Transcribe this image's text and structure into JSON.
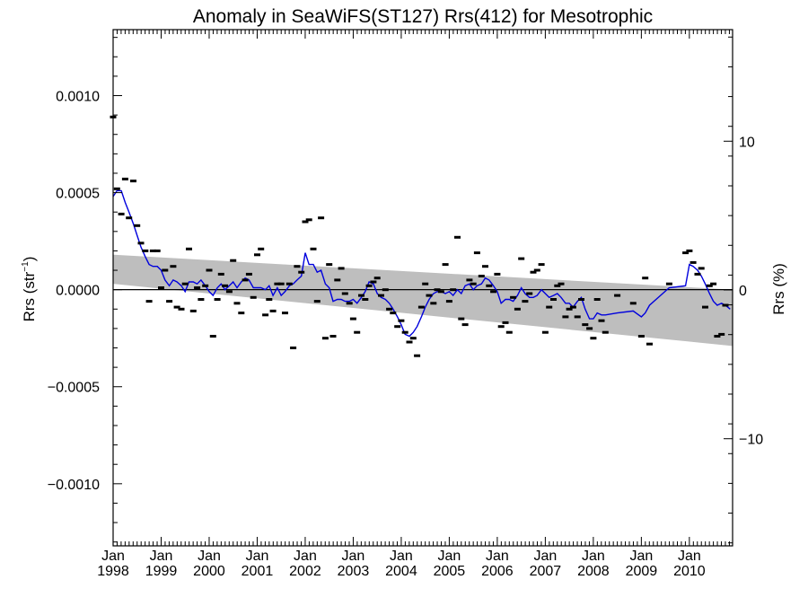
{
  "chart_data": {
    "type": "scatter",
    "title": "Anomaly in SeaWiFS(ST127) Rrs(412) for Mesotrophic",
    "ylabel_left": "Rrs (str",
    "ylabel_left_sup": "−1",
    "ylabel_left_close": ")",
    "ylabel_right": "Rrs (%)",
    "xlim": [
      1998.0,
      2010.9
    ],
    "ylim_left": [
      -0.00132,
      0.00134
    ],
    "ylim_right": [
      -17.2,
      17.5
    ],
    "x_ticks": [
      {
        "value": 1998,
        "line1": "Jan",
        "line2": "1998"
      },
      {
        "value": 1999,
        "line1": "Jan",
        "line2": "1999"
      },
      {
        "value": 2000,
        "line1": "Jan",
        "line2": "2000"
      },
      {
        "value": 2001,
        "line1": "Jan",
        "line2": "2001"
      },
      {
        "value": 2002,
        "line1": "Jan",
        "line2": "2002"
      },
      {
        "value": 2003,
        "line1": "Jan",
        "line2": "2003"
      },
      {
        "value": 2004,
        "line1": "Jan",
        "line2": "2004"
      },
      {
        "value": 2005,
        "line1": "Jan",
        "line2": "2005"
      },
      {
        "value": 2006,
        "line1": "Jan",
        "line2": "2006"
      },
      {
        "value": 2007,
        "line1": "Jan",
        "line2": "2007"
      },
      {
        "value": 2008,
        "line1": "Jan",
        "line2": "2008"
      },
      {
        "value": 2009,
        "line1": "Jan",
        "line2": "2009"
      },
      {
        "value": 2010,
        "line1": "Jan",
        "line2": "2010"
      }
    ],
    "y_ticks_left": [
      {
        "value": 0.001,
        "label": "0.0010"
      },
      {
        "value": 0.0005,
        "label": "0.0005"
      },
      {
        "value": 0.0,
        "label": "0.0000"
      },
      {
        "value": -0.0005,
        "label": "−0.0005"
      },
      {
        "value": -0.001,
        "label": "−0.0010"
      }
    ],
    "y_ticks_right": [
      {
        "value": 10,
        "label": "10"
      },
      {
        "value": 0,
        "label": "0"
      },
      {
        "value": -10,
        "label": "−10"
      }
    ],
    "trend_band": {
      "x": [
        1998.0,
        2010.9
      ],
      "upper": [
        0.00018,
        0.0
      ],
      "lower": [
        3e-05,
        -0.00029
      ]
    },
    "zero_line": 0,
    "colors": {
      "points": "#000000",
      "smooth": "#0000dd",
      "band": "#bebebe",
      "axis": "#000000"
    },
    "monthly_anomaly": [
      {
        "x": 1998.0,
        "y": 0.00089
      },
      {
        "x": 1998.08,
        "y": 0.00052
      },
      {
        "x": 1998.17,
        "y": 0.00039
      },
      {
        "x": 1998.25,
        "y": 0.00057
      },
      {
        "x": 1998.33,
        "y": 0.00037
      },
      {
        "x": 1998.42,
        "y": 0.00056
      },
      {
        "x": 1998.5,
        "y": 0.00033
      },
      {
        "x": 1998.58,
        "y": 0.00024
      },
      {
        "x": 1998.67,
        "y": 0.0002
      },
      {
        "x": 1998.75,
        "y": -6e-05
      },
      {
        "x": 1998.83,
        "y": 0.0002
      },
      {
        "x": 1998.92,
        "y": 0.0002
      },
      {
        "x": 1999.0,
        "y": 1e-05
      },
      {
        "x": 1999.08,
        "y": 0.0001
      },
      {
        "x": 1999.17,
        "y": -6e-05
      },
      {
        "x": 1999.25,
        "y": 0.00012
      },
      {
        "x": 1999.33,
        "y": -9e-05
      },
      {
        "x": 1999.42,
        "y": -0.0001
      },
      {
        "x": 1999.5,
        "y": 3e-05
      },
      {
        "x": 1999.58,
        "y": 0.00021
      },
      {
        "x": 1999.67,
        "y": -0.00011
      },
      {
        "x": 1999.75,
        "y": 1e-05
      },
      {
        "x": 1999.83,
        "y": -5e-05
      },
      {
        "x": 1999.92,
        "y": 2e-05
      },
      {
        "x": 2000.0,
        "y": 0.0001
      },
      {
        "x": 2000.08,
        "y": -0.00024
      },
      {
        "x": 2000.17,
        "y": -5e-05
      },
      {
        "x": 2000.25,
        "y": 8e-05
      },
      {
        "x": 2000.33,
        "y": 2e-05
      },
      {
        "x": 2000.42,
        "y": -1e-05
      },
      {
        "x": 2000.5,
        "y": 0.00015
      },
      {
        "x": 2000.58,
        "y": -7e-05
      },
      {
        "x": 2000.67,
        "y": -0.00012
      },
      {
        "x": 2000.75,
        "y": 5e-05
      },
      {
        "x": 2000.83,
        "y": 8e-05
      },
      {
        "x": 2000.92,
        "y": -4e-05
      },
      {
        "x": 2001.0,
        "y": 0.00018
      },
      {
        "x": 2001.08,
        "y": 0.00021
      },
      {
        "x": 2001.17,
        "y": -0.00013
      },
      {
        "x": 2001.25,
        "y": -5e-05
      },
      {
        "x": 2001.33,
        "y": -0.00011
      },
      {
        "x": 2001.42,
        "y": 3e-05
      },
      {
        "x": 2001.5,
        "y": 3e-05
      },
      {
        "x": 2001.58,
        "y": -0.00012
      },
      {
        "x": 2001.67,
        "y": 3e-05
      },
      {
        "x": 2001.75,
        "y": -0.0003
      },
      {
        "x": 2001.83,
        "y": 0.00012
      },
      {
        "x": 2001.92,
        "y": 9e-05
      },
      {
        "x": 2002.0,
        "y": 0.00035
      },
      {
        "x": 2002.08,
        "y": 0.00036
      },
      {
        "x": 2002.17,
        "y": 0.00021
      },
      {
        "x": 2002.25,
        "y": -6e-05
      },
      {
        "x": 2002.33,
        "y": 0.00037
      },
      {
        "x": 2002.42,
        "y": -0.00025
      },
      {
        "x": 2002.5,
        "y": 0.00013
      },
      {
        "x": 2002.58,
        "y": -0.00024
      },
      {
        "x": 2002.67,
        "y": 5e-05
      },
      {
        "x": 2002.75,
        "y": 0.00011
      },
      {
        "x": 2002.83,
        "y": -2e-05
      },
      {
        "x": 2002.92,
        "y": -7e-05
      },
      {
        "x": 2003.0,
        "y": -0.00015
      },
      {
        "x": 2003.08,
        "y": -0.00022
      },
      {
        "x": 2003.17,
        "y": -3e-05
      },
      {
        "x": 2003.25,
        "y": -5e-05
      },
      {
        "x": 2003.33,
        "y": 2e-05
      },
      {
        "x": 2003.42,
        "y": 4e-05
      },
      {
        "x": 2003.5,
        "y": 6e-05
      },
      {
        "x": 2003.58,
        "y": -3e-05
      },
      {
        "x": 2003.67,
        "y": 0.0
      },
      {
        "x": 2003.75,
        "y": -0.0001
      },
      {
        "x": 2003.83,
        "y": -0.00012
      },
      {
        "x": 2003.92,
        "y": -0.00019
      },
      {
        "x": 2004.0,
        "y": -0.00016
      },
      {
        "x": 2004.08,
        "y": -0.00022
      },
      {
        "x": 2004.17,
        "y": -0.00027
      },
      {
        "x": 2004.25,
        "y": -0.00025
      },
      {
        "x": 2004.33,
        "y": -0.00034
      },
      {
        "x": 2004.42,
        "y": -9e-05
      },
      {
        "x": 2004.5,
        "y": 3e-05
      },
      {
        "x": 2004.58,
        "y": -3e-05
      },
      {
        "x": 2004.67,
        "y": -7e-05
      },
      {
        "x": 2004.75,
        "y": 0.0
      },
      {
        "x": 2004.83,
        "y": -1e-05
      },
      {
        "x": 2004.92,
        "y": 0.00013
      },
      {
        "x": 2005.0,
        "y": -6e-05
      },
      {
        "x": 2005.08,
        "y": 0.0
      },
      {
        "x": 2005.17,
        "y": 0.00027
      },
      {
        "x": 2005.25,
        "y": -0.00015
      },
      {
        "x": 2005.33,
        "y": -0.00018
      },
      {
        "x": 2005.42,
        "y": 5e-05
      },
      {
        "x": 2005.5,
        "y": 3e-05
      },
      {
        "x": 2005.58,
        "y": 0.00019
      },
      {
        "x": 2005.67,
        "y": 7e-05
      },
      {
        "x": 2005.75,
        "y": 0.00012
      },
      {
        "x": 2005.83,
        "y": 2e-05
      },
      {
        "x": 2005.92,
        "y": -1e-05
      },
      {
        "x": 2006.0,
        "y": 8e-05
      },
      {
        "x": 2006.08,
        "y": -0.00019
      },
      {
        "x": 2006.17,
        "y": -0.00017
      },
      {
        "x": 2006.25,
        "y": -0.00022
      },
      {
        "x": 2006.33,
        "y": -4e-05
      },
      {
        "x": 2006.42,
        "y": -0.0001
      },
      {
        "x": 2006.5,
        "y": 0.00016
      },
      {
        "x": 2006.58,
        "y": -6e-05
      },
      {
        "x": 2006.67,
        "y": -2e-05
      },
      {
        "x": 2006.75,
        "y": 9e-05
      },
      {
        "x": 2006.83,
        "y": 0.0001
      },
      {
        "x": 2006.92,
        "y": 0.00013
      },
      {
        "x": 2007.0,
        "y": -0.00022
      },
      {
        "x": 2007.08,
        "y": -9e-05
      },
      {
        "x": 2007.17,
        "y": -5e-05
      },
      {
        "x": 2007.25,
        "y": 2e-05
      },
      {
        "x": 2007.33,
        "y": 3e-05
      },
      {
        "x": 2007.42,
        "y": -0.00014
      },
      {
        "x": 2007.5,
        "y": -0.0001
      },
      {
        "x": 2007.58,
        "y": -9e-05
      },
      {
        "x": 2007.67,
        "y": -0.00014
      },
      {
        "x": 2007.75,
        "y": -5e-05
      },
      {
        "x": 2007.83,
        "y": -0.00018
      },
      {
        "x": 2007.92,
        "y": -0.0002
      },
      {
        "x": 2008.0,
        "y": -0.00025
      },
      {
        "x": 2008.08,
        "y": -5e-05
      },
      {
        "x": 2008.17,
        "y": -0.00016
      },
      {
        "x": 2008.25,
        "y": -0.00022
      },
      {
        "x": 2008.5,
        "y": -3e-05
      },
      {
        "x": 2008.83,
        "y": -7e-05
      },
      {
        "x": 2009.0,
        "y": -0.00024
      },
      {
        "x": 2009.08,
        "y": 6e-05
      },
      {
        "x": 2009.17,
        "y": -0.00028
      },
      {
        "x": 2009.58,
        "y": 3e-05
      },
      {
        "x": 2009.92,
        "y": 0.00019
      },
      {
        "x": 2010.0,
        "y": 0.0002
      },
      {
        "x": 2010.08,
        "y": 0.00014
      },
      {
        "x": 2010.17,
        "y": 8e-05
      },
      {
        "x": 2010.25,
        "y": 0.00011
      },
      {
        "x": 2010.33,
        "y": -9e-05
      },
      {
        "x": 2010.42,
        "y": 2e-05
      },
      {
        "x": 2010.5,
        "y": 3e-05
      },
      {
        "x": 2010.58,
        "y": -0.00024
      },
      {
        "x": 2010.67,
        "y": -0.00023
      },
      {
        "x": 2010.75,
        "y": -8e-05
      }
    ],
    "smoothed": [
      {
        "x": 1998.0,
        "y": 0.00048
      },
      {
        "x": 1998.08,
        "y": 0.00051
      },
      {
        "x": 1998.17,
        "y": 0.00051
      },
      {
        "x": 1998.25,
        "y": 0.00045
      },
      {
        "x": 1998.33,
        "y": 0.0004
      },
      {
        "x": 1998.42,
        "y": 0.00034
      },
      {
        "x": 1998.5,
        "y": 0.00028
      },
      {
        "x": 1998.58,
        "y": 0.00022
      },
      {
        "x": 1998.67,
        "y": 0.00017
      },
      {
        "x": 1998.75,
        "y": 0.00013
      },
      {
        "x": 1998.83,
        "y": 0.00012
      },
      {
        "x": 1998.92,
        "y": 0.00012
      },
      {
        "x": 1999.0,
        "y": 0.0001
      },
      {
        "x": 1999.08,
        "y": 5e-05
      },
      {
        "x": 1999.17,
        "y": 2e-05
      },
      {
        "x": 1999.25,
        "y": 5e-05
      },
      {
        "x": 1999.33,
        "y": 4e-05
      },
      {
        "x": 1999.42,
        "y": 2e-05
      },
      {
        "x": 1999.5,
        "y": -1e-05
      },
      {
        "x": 1999.58,
        "y": 4e-05
      },
      {
        "x": 1999.67,
        "y": 4e-05
      },
      {
        "x": 1999.75,
        "y": 3e-05
      },
      {
        "x": 1999.83,
        "y": 5e-05
      },
      {
        "x": 1999.92,
        "y": 2e-05
      },
      {
        "x": 2000.0,
        "y": -1e-05
      },
      {
        "x": 2000.08,
        "y": -3e-05
      },
      {
        "x": 2000.17,
        "y": 1e-05
      },
      {
        "x": 2000.25,
        "y": 3e-05
      },
      {
        "x": 2000.33,
        "y": 0.0
      },
      {
        "x": 2000.42,
        "y": 2e-05
      },
      {
        "x": 2000.5,
        "y": 4e-05
      },
      {
        "x": 2000.58,
        "y": 1e-05
      },
      {
        "x": 2000.67,
        "y": 4e-05
      },
      {
        "x": 2000.75,
        "y": 6e-05
      },
      {
        "x": 2000.83,
        "y": 5e-05
      },
      {
        "x": 2000.92,
        "y": 1e-05
      },
      {
        "x": 2001.0,
        "y": 1e-05
      },
      {
        "x": 2001.08,
        "y": 1e-05
      },
      {
        "x": 2001.17,
        "y": 0.0
      },
      {
        "x": 2001.25,
        "y": 2e-05
      },
      {
        "x": 2001.33,
        "y": -3e-05
      },
      {
        "x": 2001.42,
        "y": 1e-05
      },
      {
        "x": 2001.5,
        "y": -3e-05
      },
      {
        "x": 2001.58,
        "y": -1e-05
      },
      {
        "x": 2001.67,
        "y": 2e-05
      },
      {
        "x": 2001.75,
        "y": 3e-05
      },
      {
        "x": 2001.83,
        "y": 5e-05
      },
      {
        "x": 2001.92,
        "y": 7e-05
      },
      {
        "x": 2002.0,
        "y": 0.00019
      },
      {
        "x": 2002.08,
        "y": 0.00013
      },
      {
        "x": 2002.17,
        "y": 0.00013
      },
      {
        "x": 2002.25,
        "y": 9e-05
      },
      {
        "x": 2002.33,
        "y": 0.0001
      },
      {
        "x": 2002.42,
        "y": 3e-05
      },
      {
        "x": 2002.5,
        "y": 1e-05
      },
      {
        "x": 2002.58,
        "y": -6e-05
      },
      {
        "x": 2002.67,
        "y": -5e-05
      },
      {
        "x": 2002.75,
        "y": -5e-05
      },
      {
        "x": 2002.83,
        "y": -6e-05
      },
      {
        "x": 2002.92,
        "y": -6e-05
      },
      {
        "x": 2003.0,
        "y": -5e-05
      },
      {
        "x": 2003.08,
        "y": -7e-05
      },
      {
        "x": 2003.17,
        "y": -4e-05
      },
      {
        "x": 2003.25,
        "y": -1e-05
      },
      {
        "x": 2003.33,
        "y": 4e-05
      },
      {
        "x": 2003.42,
        "y": 3e-05
      },
      {
        "x": 2003.5,
        "y": -2e-05
      },
      {
        "x": 2003.58,
        "y": -4e-05
      },
      {
        "x": 2003.67,
        "y": -5e-05
      },
      {
        "x": 2003.75,
        "y": -7e-05
      },
      {
        "x": 2003.83,
        "y": -0.0001
      },
      {
        "x": 2003.92,
        "y": -0.00014
      },
      {
        "x": 2004.0,
        "y": -0.00018
      },
      {
        "x": 2004.08,
        "y": -0.00023
      },
      {
        "x": 2004.17,
        "y": -0.00024
      },
      {
        "x": 2004.25,
        "y": -0.00022
      },
      {
        "x": 2004.33,
        "y": -0.00019
      },
      {
        "x": 2004.42,
        "y": -0.00014
      },
      {
        "x": 2004.5,
        "y": -9e-05
      },
      {
        "x": 2004.58,
        "y": -5e-05
      },
      {
        "x": 2004.67,
        "y": -2e-05
      },
      {
        "x": 2004.75,
        "y": -1e-05
      },
      {
        "x": 2004.83,
        "y": -1e-05
      },
      {
        "x": 2004.92,
        "y": -2e-05
      },
      {
        "x": 2005.0,
        "y": -1e-05
      },
      {
        "x": 2005.08,
        "y": -3e-05
      },
      {
        "x": 2005.17,
        "y": 0.0
      },
      {
        "x": 2005.25,
        "y": -2e-05
      },
      {
        "x": 2005.33,
        "y": 2e-05
      },
      {
        "x": 2005.42,
        "y": 3e-05
      },
      {
        "x": 2005.5,
        "y": 0.0
      },
      {
        "x": 2005.58,
        "y": 2e-05
      },
      {
        "x": 2005.67,
        "y": 3e-05
      },
      {
        "x": 2005.75,
        "y": 6e-05
      },
      {
        "x": 2005.83,
        "y": 5e-05
      },
      {
        "x": 2005.92,
        "y": 2e-05
      },
      {
        "x": 2006.0,
        "y": -1e-05
      },
      {
        "x": 2006.08,
        "y": -7e-05
      },
      {
        "x": 2006.17,
        "y": -5e-05
      },
      {
        "x": 2006.25,
        "y": -5e-05
      },
      {
        "x": 2006.33,
        "y": -6e-05
      },
      {
        "x": 2006.42,
        "y": -3e-05
      },
      {
        "x": 2006.5,
        "y": 1e-05
      },
      {
        "x": 2006.58,
        "y": -2e-05
      },
      {
        "x": 2006.67,
        "y": -4e-05
      },
      {
        "x": 2006.75,
        "y": -4e-05
      },
      {
        "x": 2006.83,
        "y": -3e-05
      },
      {
        "x": 2006.92,
        "y": 0.0
      },
      {
        "x": 2007.0,
        "y": -2e-05
      },
      {
        "x": 2007.08,
        "y": -4e-05
      },
      {
        "x": 2007.17,
        "y": -3e-05
      },
      {
        "x": 2007.25,
        "y": -2e-05
      },
      {
        "x": 2007.33,
        "y": -4e-05
      },
      {
        "x": 2007.42,
        "y": -7e-05
      },
      {
        "x": 2007.5,
        "y": -7e-05
      },
      {
        "x": 2007.58,
        "y": -9e-05
      },
      {
        "x": 2007.67,
        "y": -6e-05
      },
      {
        "x": 2007.75,
        "y": -4e-05
      },
      {
        "x": 2007.83,
        "y": -0.0001
      },
      {
        "x": 2007.92,
        "y": -0.00015
      },
      {
        "x": 2008.0,
        "y": -0.00015
      },
      {
        "x": 2008.08,
        "y": -0.00012
      },
      {
        "x": 2008.17,
        "y": -0.00013
      },
      {
        "x": 2008.25,
        "y": -0.00013
      },
      {
        "x": 2008.5,
        "y": -0.00012
      },
      {
        "x": 2008.83,
        "y": -0.00011
      },
      {
        "x": 2009.0,
        "y": -0.00014
      },
      {
        "x": 2009.08,
        "y": -0.00012
      },
      {
        "x": 2009.17,
        "y": -8e-05
      },
      {
        "x": 2009.58,
        "y": 1e-05
      },
      {
        "x": 2009.92,
        "y": 2e-05
      },
      {
        "x": 2010.0,
        "y": 0.00013
      },
      {
        "x": 2010.08,
        "y": 0.00012
      },
      {
        "x": 2010.17,
        "y": 0.0001
      },
      {
        "x": 2010.25,
        "y": 7e-05
      },
      {
        "x": 2010.33,
        "y": 3e-05
      },
      {
        "x": 2010.42,
        "y": -2e-05
      },
      {
        "x": 2010.5,
        "y": -6e-05
      },
      {
        "x": 2010.58,
        "y": -8e-05
      },
      {
        "x": 2010.67,
        "y": -7e-05
      },
      {
        "x": 2010.75,
        "y": -8e-05
      },
      {
        "x": 2010.85,
        "y": -0.0001
      }
    ]
  }
}
